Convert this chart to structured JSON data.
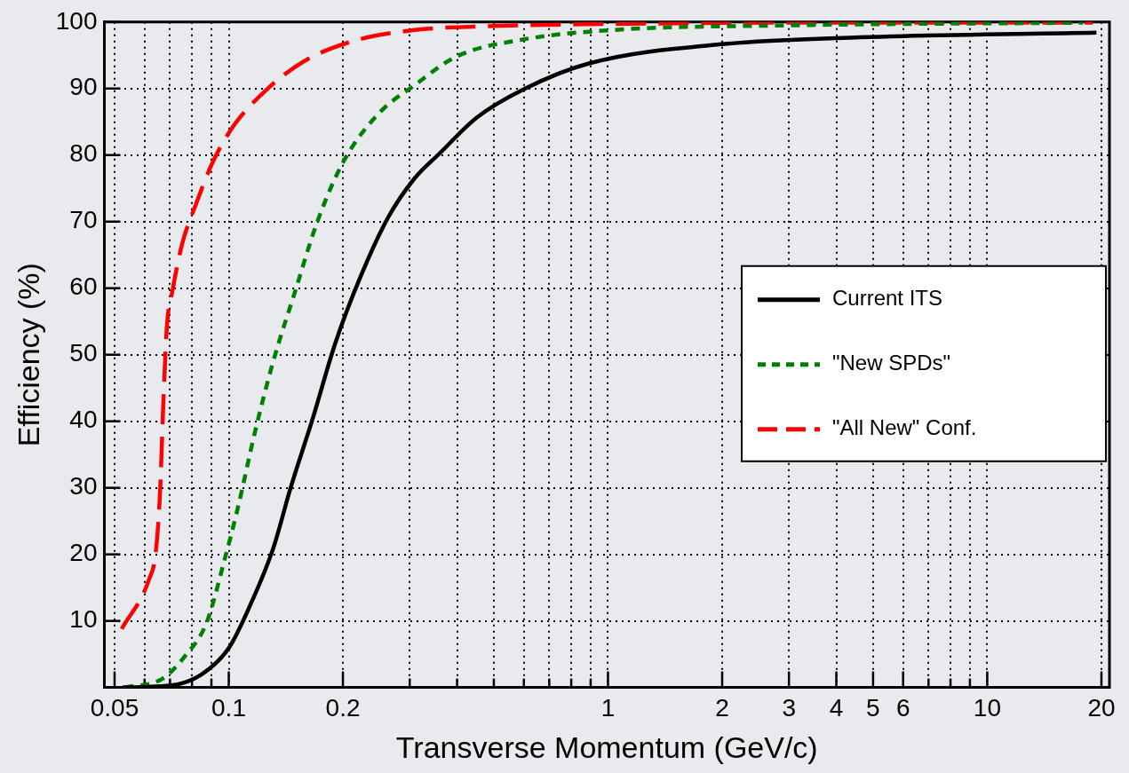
{
  "chart_data": {
    "type": "line",
    "xlabel": "Transverse Momentum (GeV/c)",
    "ylabel": "Efficiency (%)",
    "log": "x",
    "xlim": [
      0.047,
      21
    ],
    "ylim": [
      0,
      100
    ],
    "xticks": [
      0.05,
      {
        "value": 0.06,
        "label": null
      },
      {
        "value": 0.07,
        "label": null
      },
      {
        "value": 0.08,
        "label": null
      },
      {
        "value": 0.09,
        "label": null
      },
      0.1,
      0.2,
      {
        "value": 0.3,
        "label": null
      },
      {
        "value": 0.4,
        "label": null
      },
      {
        "value": 0.5,
        "label": null
      },
      {
        "value": 0.6,
        "label": null
      },
      {
        "value": 0.7,
        "label": null
      },
      {
        "value": 0.8,
        "label": null
      },
      {
        "value": 0.9,
        "label": null
      },
      1,
      2,
      3,
      4,
      5,
      6,
      {
        "value": 7,
        "label": null
      },
      {
        "value": 8,
        "label": null
      },
      {
        "value": 9,
        "label": null
      },
      10,
      20
    ],
    "yticks": [
      10,
      20,
      30,
      40,
      50,
      60,
      70,
      80,
      90,
      100
    ],
    "grid": true,
    "legend": "right",
    "marker": "none",
    "series": [
      {
        "name": "Current ITS",
        "color": "#000000",
        "line_style": "solid",
        "x": [
          0.0525,
          0.0705,
          0.085,
          0.1,
          0.114,
          0.131,
          0.1456,
          0.1667,
          0.1906,
          0.224,
          0.263,
          0.309,
          0.359,
          0.45,
          0.6,
          0.894,
          2.03,
          4.62,
          19.4
        ],
        "values": [
          0,
          0.3,
          2,
          5.9,
          12.4,
          20.9,
          30,
          40.5,
          51.6,
          62.1,
          70.6,
          76.5,
          80.2,
          85.6,
          89.9,
          93.8,
          96.7,
          97.7,
          98.4
        ]
      },
      {
        "name": "\"New SPDs\"",
        "color": "#008000",
        "line_style": "dotted",
        "x": [
          0.0532,
          0.0668,
          0.0764,
          0.0875,
          0.0973,
          0.1055,
          0.1175,
          0.131,
          0.1496,
          0.171,
          0.201,
          0.249,
          0.309,
          0.398,
          0.6,
          1.03,
          3.06,
          17.9
        ],
        "values": [
          0,
          1.3,
          4.6,
          9.8,
          19,
          26.8,
          38.6,
          49,
          59.5,
          69.9,
          79.1,
          86.3,
          90.5,
          94.8,
          97.4,
          98.8,
          99.5,
          99.9
        ]
      },
      {
        "name": "\"All New\" Conf.",
        "color": "#ff0000",
        "line_style": "dashed",
        "x": [
          0.0522,
          0.0617,
          0.0642,
          0.0659,
          0.0672,
          0.0687,
          0.071,
          0.0754,
          0.0818,
          0.091,
          0.1027,
          0.124,
          0.158,
          0.212,
          0.309,
          0.5,
          1,
          3,
          19
        ],
        "values": [
          8.8,
          16.3,
          20.3,
          29.4,
          42.5,
          54.2,
          59.5,
          66.7,
          72.5,
          79.1,
          84.3,
          89.5,
          94.1,
          97.1,
          98.8,
          99.4,
          99.7,
          99.9,
          99.9
        ]
      }
    ]
  }
}
